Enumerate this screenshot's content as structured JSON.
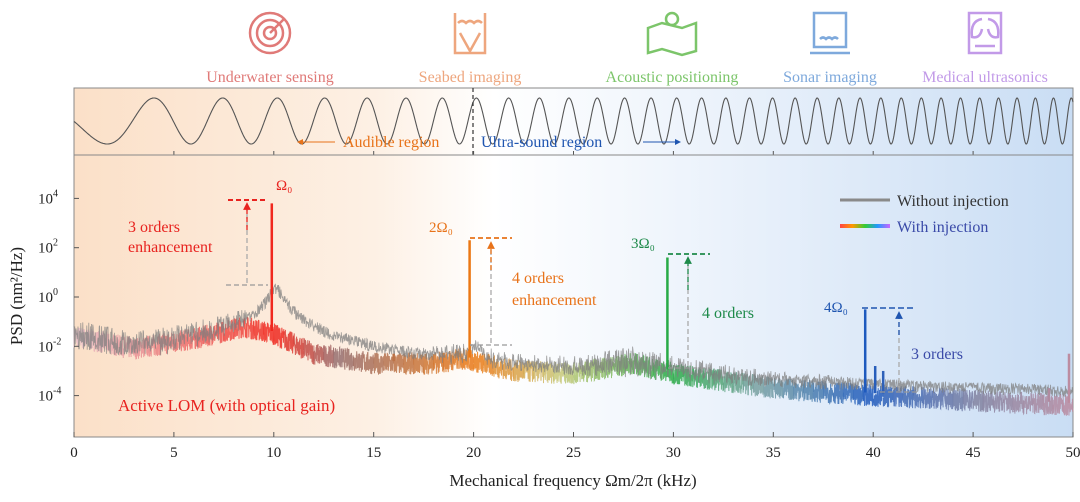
{
  "applications": [
    {
      "label": "Underwater sensing",
      "icon": "radar-target-icon",
      "color": "#e07a78"
    },
    {
      "label": "Seabed imaging",
      "icon": "seabed-icon",
      "color": "#eea67e"
    },
    {
      "label": "Acoustic positioning",
      "icon": "map-pin-icon",
      "color": "#7cc56a"
    },
    {
      "label": "Sonar imaging",
      "icon": "sonar-monitor-icon",
      "color": "#7ea9dc"
    },
    {
      "label": "Medical ultrasonics",
      "icon": "lungs-icon",
      "color": "#c29ae8"
    }
  ],
  "regions": {
    "audible": "Audible region",
    "ultrasound": "Ultra-sound region",
    "boundary_khz": 20
  },
  "chart_data": {
    "type": "line",
    "xlabel": "Mechanical frequency Ωm/2π (kHz)",
    "ylabel": "PSD (nm²/Hz)",
    "xlim": [
      0,
      50
    ],
    "ylim_log10": [
      -6.2,
      5.0
    ],
    "xticks": [
      "0",
      "5",
      "10",
      "15",
      "20",
      "25",
      "30",
      "35",
      "40",
      "45",
      "50"
    ],
    "top_xticks": [
      "5",
      "10",
      "15",
      "20",
      "25",
      "30",
      "35",
      "40",
      "45"
    ],
    "yticks": [
      {
        "base": "10",
        "exp": "4"
      },
      {
        "base": "10",
        "exp": "2"
      },
      {
        "base": "10",
        "exp": "0"
      },
      {
        "base": "10",
        "exp": "-2"
      },
      {
        "base": "10",
        "exp": "-4"
      }
    ],
    "legend": [
      {
        "label": "Without injection",
        "color": "#8a8a8a"
      },
      {
        "label": "With injection",
        "color": "rainbow"
      }
    ],
    "legend_position": "top-right",
    "background_log10": [
      [
        0,
        -1.5
      ],
      [
        3,
        -2.0
      ],
      [
        6,
        -1.6
      ],
      [
        8.5,
        -1.1
      ],
      [
        10,
        -1.4
      ],
      [
        12,
        -2.2
      ],
      [
        15,
        -2.6
      ],
      [
        18,
        -2.6
      ],
      [
        19.5,
        -2.4
      ],
      [
        22,
        -2.9
      ],
      [
        25,
        -3.0
      ],
      [
        28,
        -2.6
      ],
      [
        30,
        -3.0
      ],
      [
        35,
        -3.6
      ],
      [
        40,
        -3.9
      ],
      [
        45,
        -4.1
      ],
      [
        50,
        -4.3
      ]
    ],
    "series": [
      {
        "name": "Without injection",
        "peaks": [
          {
            "x": 10.1,
            "log10": 0.3
          },
          {
            "x": 20.1,
            "log10": -2.0
          },
          {
            "x": 30.0,
            "log10": -2.9
          },
          {
            "x": 40.0,
            "log10": -3.9
          }
        ]
      },
      {
        "name": "With injection",
        "peaks": [
          {
            "x": 9.9,
            "log10": 3.8
          },
          {
            "x": 19.8,
            "log10": 2.3
          },
          {
            "x": 29.7,
            "log10": 1.6
          },
          {
            "x": 39.6,
            "log10": -0.5
          },
          {
            "x": 16.0,
            "log10": -2.3
          },
          {
            "x": 36.7,
            "log10": -3.7
          },
          {
            "x": 40.1,
            "log10": -2.8
          },
          {
            "x": 40.5,
            "log10": -3.0
          },
          {
            "x": 48.8,
            "log10": -3.7
          },
          {
            "x": 49.8,
            "log10": -2.3
          }
        ]
      }
    ],
    "annotations": [
      {
        "label": "Ω₀",
        "color": "#e8231f"
      },
      {
        "label": "2Ω₀",
        "color": "#e8731a"
      },
      {
        "label": "3Ω₀",
        "color": "#1e8a4a"
      },
      {
        "label": "4Ω₀",
        "color": "#1f55b0"
      },
      {
        "line1": "3 orders",
        "line2": "enhancement",
        "color": "#e8231f"
      },
      {
        "line1": "4 orders",
        "line2": "enhancement",
        "color": "#e8731a"
      },
      {
        "line1": "4 orders",
        "color": "#1e8a4a"
      },
      {
        "line1": "3 orders",
        "color": "#3a4aa8"
      },
      {
        "line1": "Active LOM (with optical gain)",
        "color": "#e8231f"
      }
    ]
  }
}
